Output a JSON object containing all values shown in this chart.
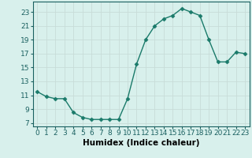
{
  "x": [
    0,
    1,
    2,
    3,
    4,
    5,
    6,
    7,
    8,
    9,
    10,
    11,
    12,
    13,
    14,
    15,
    16,
    17,
    18,
    19,
    20,
    21,
    22,
    23
  ],
  "y": [
    11.5,
    10.8,
    10.5,
    10.5,
    8.5,
    7.8,
    7.5,
    7.5,
    7.5,
    7.5,
    10.5,
    15.5,
    19.0,
    21.0,
    22.0,
    22.5,
    23.5,
    23.0,
    22.5,
    19.0,
    15.8,
    15.8,
    17.2,
    17.0
  ],
  "line_color": "#1a7a6a",
  "marker": "D",
  "marker_size": 2.5,
  "bg_color": "#d8f0ec",
  "grid_color": "#c8dcd8",
  "xlabel": "Humidex (Indice chaleur)",
  "xlim": [
    -0.5,
    23.5
  ],
  "ylim": [
    6.5,
    24.5
  ],
  "yticks": [
    7,
    9,
    11,
    13,
    15,
    17,
    19,
    21,
    23
  ],
  "xticks": [
    0,
    1,
    2,
    3,
    4,
    5,
    6,
    7,
    8,
    9,
    10,
    11,
    12,
    13,
    14,
    15,
    16,
    17,
    18,
    19,
    20,
    21,
    22,
    23
  ],
  "xlabel_fontsize": 7.5,
  "tick_fontsize": 6.5,
  "linewidth": 1.0
}
